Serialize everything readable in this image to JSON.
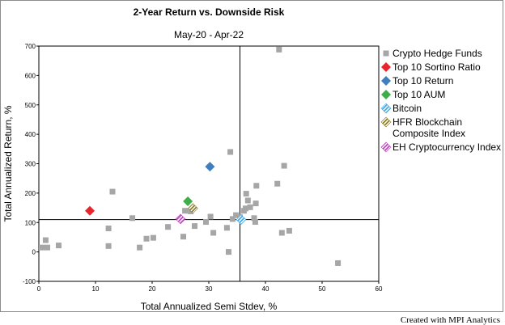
{
  "chart_data": {
    "type": "scatter",
    "title": "2-Year Return vs. Downside Risk",
    "subtitle": "May-20 - Apr-22",
    "xlabel": "Total Annualized Semi Stdev, %",
    "ylabel": "Total Annualized Return, %",
    "xlim": [
      0,
      60
    ],
    "ylim": [
      -100,
      700
    ],
    "xticks": [
      "0",
      "10",
      "20",
      "30",
      "40",
      "50",
      "60"
    ],
    "yticks": [
      "-100",
      "0",
      "100",
      "200",
      "300",
      "400",
      "500",
      "600",
      "700"
    ],
    "reference_lines": {
      "x": 35.5,
      "y": 110
    },
    "legend_position": "right",
    "series": [
      {
        "name": "Crypto Hedge Funds",
        "marker": "square",
        "color": "#a6a6a6",
        "points": [
          [
            0.5,
            15
          ],
          [
            1.2,
            40
          ],
          [
            1.5,
            15
          ],
          [
            3.5,
            22
          ],
          [
            12.3,
            80
          ],
          [
            12.3,
            20
          ],
          [
            13,
            205
          ],
          [
            16.5,
            115
          ],
          [
            17.8,
            15
          ],
          [
            19,
            45
          ],
          [
            20.2,
            48
          ],
          [
            22.8,
            85
          ],
          [
            25.5,
            52
          ],
          [
            25.8,
            140
          ],
          [
            26.8,
            138
          ],
          [
            27.5,
            88
          ],
          [
            29.5,
            102
          ],
          [
            30.3,
            120
          ],
          [
            30.8,
            65
          ],
          [
            33.2,
            82
          ],
          [
            33.5,
            0
          ],
          [
            33.8,
            340
          ],
          [
            34.2,
            112
          ],
          [
            34.8,
            125
          ],
          [
            35.5,
            118
          ],
          [
            36.2,
            140
          ],
          [
            36.5,
            148
          ],
          [
            36.6,
            198
          ],
          [
            36.9,
            175
          ],
          [
            37.3,
            152
          ],
          [
            38,
            115
          ],
          [
            38.2,
            102
          ],
          [
            38.3,
            165
          ],
          [
            38.4,
            225
          ],
          [
            42.1,
            232
          ],
          [
            42.4,
            688
          ],
          [
            42.9,
            65
          ],
          [
            43.3,
            293
          ],
          [
            44.2,
            72
          ],
          [
            52.8,
            -38
          ]
        ]
      },
      {
        "name": "Top 10 Sortino Ratio",
        "marker": "diamond",
        "color": "#e8242c",
        "points": [
          [
            9,
            140
          ]
        ]
      },
      {
        "name": "Top 10 Return",
        "marker": "diamond",
        "color": "#3f7fbf",
        "points": [
          [
            30.2,
            290
          ]
        ]
      },
      {
        "name": "Top 10 AUM",
        "marker": "diamond",
        "color": "#3fae49",
        "points": [
          [
            26.3,
            172
          ]
        ]
      },
      {
        "name": "Bitcoin",
        "marker": "diamond-hatched",
        "color": "#3ea6e6",
        "points": [
          [
            35.7,
            110
          ]
        ]
      },
      {
        "name": "HFR Blockchain Composite Index",
        "legend_lines": [
          "HFR Blockchain",
          "Composite Index"
        ],
        "marker": "diamond-hatched",
        "color": "#8a7a1a",
        "points": [
          [
            27.2,
            148
          ]
        ]
      },
      {
        "name": "EH Cryptocurrency Index",
        "marker": "diamond-hatched",
        "color": "#c23ec2",
        "points": [
          [
            25,
            112
          ]
        ]
      }
    ]
  },
  "credit": "Created with MPI Analytics"
}
